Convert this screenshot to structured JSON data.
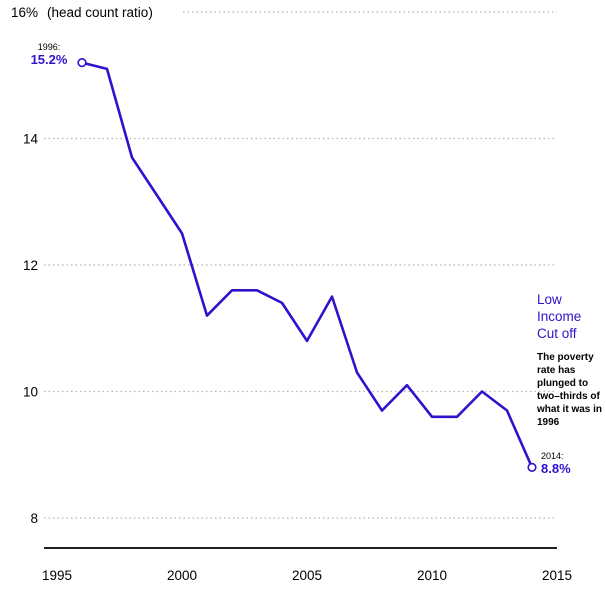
{
  "chart_data": {
    "type": "line",
    "axis_label": "(head count ratio)",
    "x": [
      1996,
      1997,
      1998,
      1999,
      2000,
      2001,
      2002,
      2003,
      2004,
      2005,
      2006,
      2007,
      2008,
      2009,
      2010,
      2011,
      2012,
      2013,
      2014
    ],
    "values": [
      15.2,
      15.1,
      13.7,
      13.1,
      12.5,
      11.2,
      11.6,
      11.6,
      11.4,
      10.8,
      11.5,
      10.3,
      9.7,
      10.1,
      9.6,
      9.6,
      10.0,
      9.7,
      8.8
    ],
    "xlim": [
      1995,
      2015
    ],
    "ylim": [
      8,
      16
    ],
    "xticks": [
      1995,
      2000,
      2005,
      2010,
      2015
    ],
    "yticks": [
      8,
      10,
      12,
      14,
      16
    ],
    "ytick_labels": [
      "8",
      "10",
      "12",
      "14",
      "16%"
    ],
    "grid": "dotted-horizontal",
    "legend_position": "none",
    "line_color": "#3311cc",
    "grid_color": "#b3b3b3",
    "axis_color": "#000000",
    "annotations": {
      "start_year": "1996:",
      "start_value": "15.2%",
      "end_year": "2014:",
      "end_value": "8.8%",
      "series_label": "Low Income Cut off",
      "note": "The poverty rate has plunged to two–thirds of what it was in 1996"
    }
  }
}
